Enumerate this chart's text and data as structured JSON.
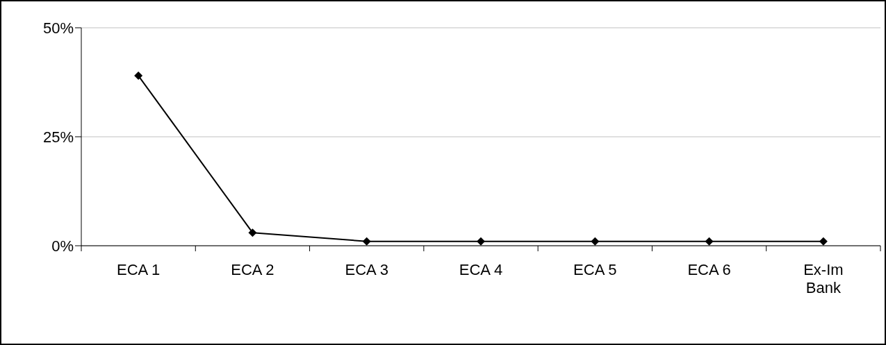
{
  "chart_data": {
    "type": "line",
    "categories": [
      "ECA 1",
      "ECA 2",
      "ECA 3",
      "ECA 4",
      "ECA 5",
      "ECA 6",
      "Ex-Im Bank"
    ],
    "series": [
      {
        "color": "#000000",
        "values": [
          39,
          3,
          1,
          1,
          1,
          1,
          1
        ]
      }
    ],
    "ylim": [
      0,
      50
    ],
    "yticks": [
      {
        "value": 0,
        "label": "0%"
      },
      {
        "value": 25,
        "label": "25%"
      },
      {
        "value": 50,
        "label": "50%"
      }
    ],
    "grid": "y",
    "legend": false,
    "marker": "diamond",
    "line_style": "solid"
  }
}
